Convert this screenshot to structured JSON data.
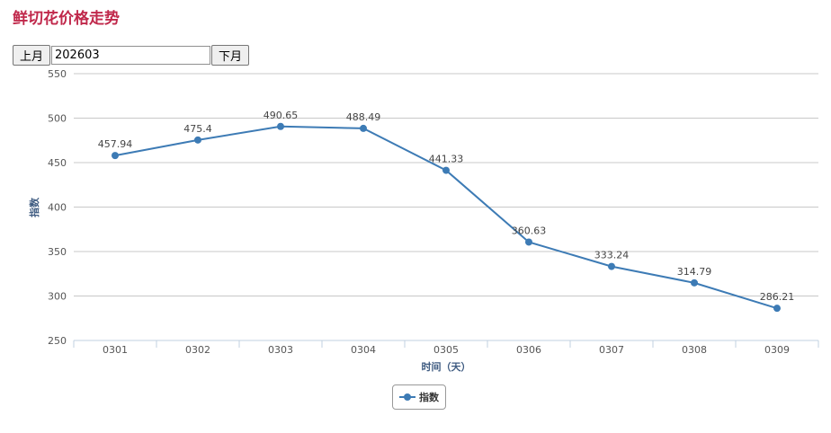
{
  "page": {
    "title": "鲜切花价格走势"
  },
  "controls": {
    "prev_label": "上月",
    "month_value": "202603",
    "next_label": "下月"
  },
  "chart_data": {
    "type": "line",
    "title": "",
    "xlabel": "时间（天）",
    "ylabel": "指数",
    "categories": [
      "0301",
      "0302",
      "0303",
      "0304",
      "0305",
      "0306",
      "0307",
      "0308",
      "0309"
    ],
    "series": [
      {
        "name": "指数",
        "values": [
          457.94,
          475.4,
          490.65,
          488.49,
          441.33,
          360.63,
          333.24,
          314.79,
          286.21
        ],
        "color": "#3d7bb5"
      }
    ],
    "ylim": [
      250,
      550
    ],
    "yticks": [
      250,
      300,
      350,
      400,
      450,
      500,
      550
    ],
    "grid": true,
    "legend": "bottom-center"
  }
}
